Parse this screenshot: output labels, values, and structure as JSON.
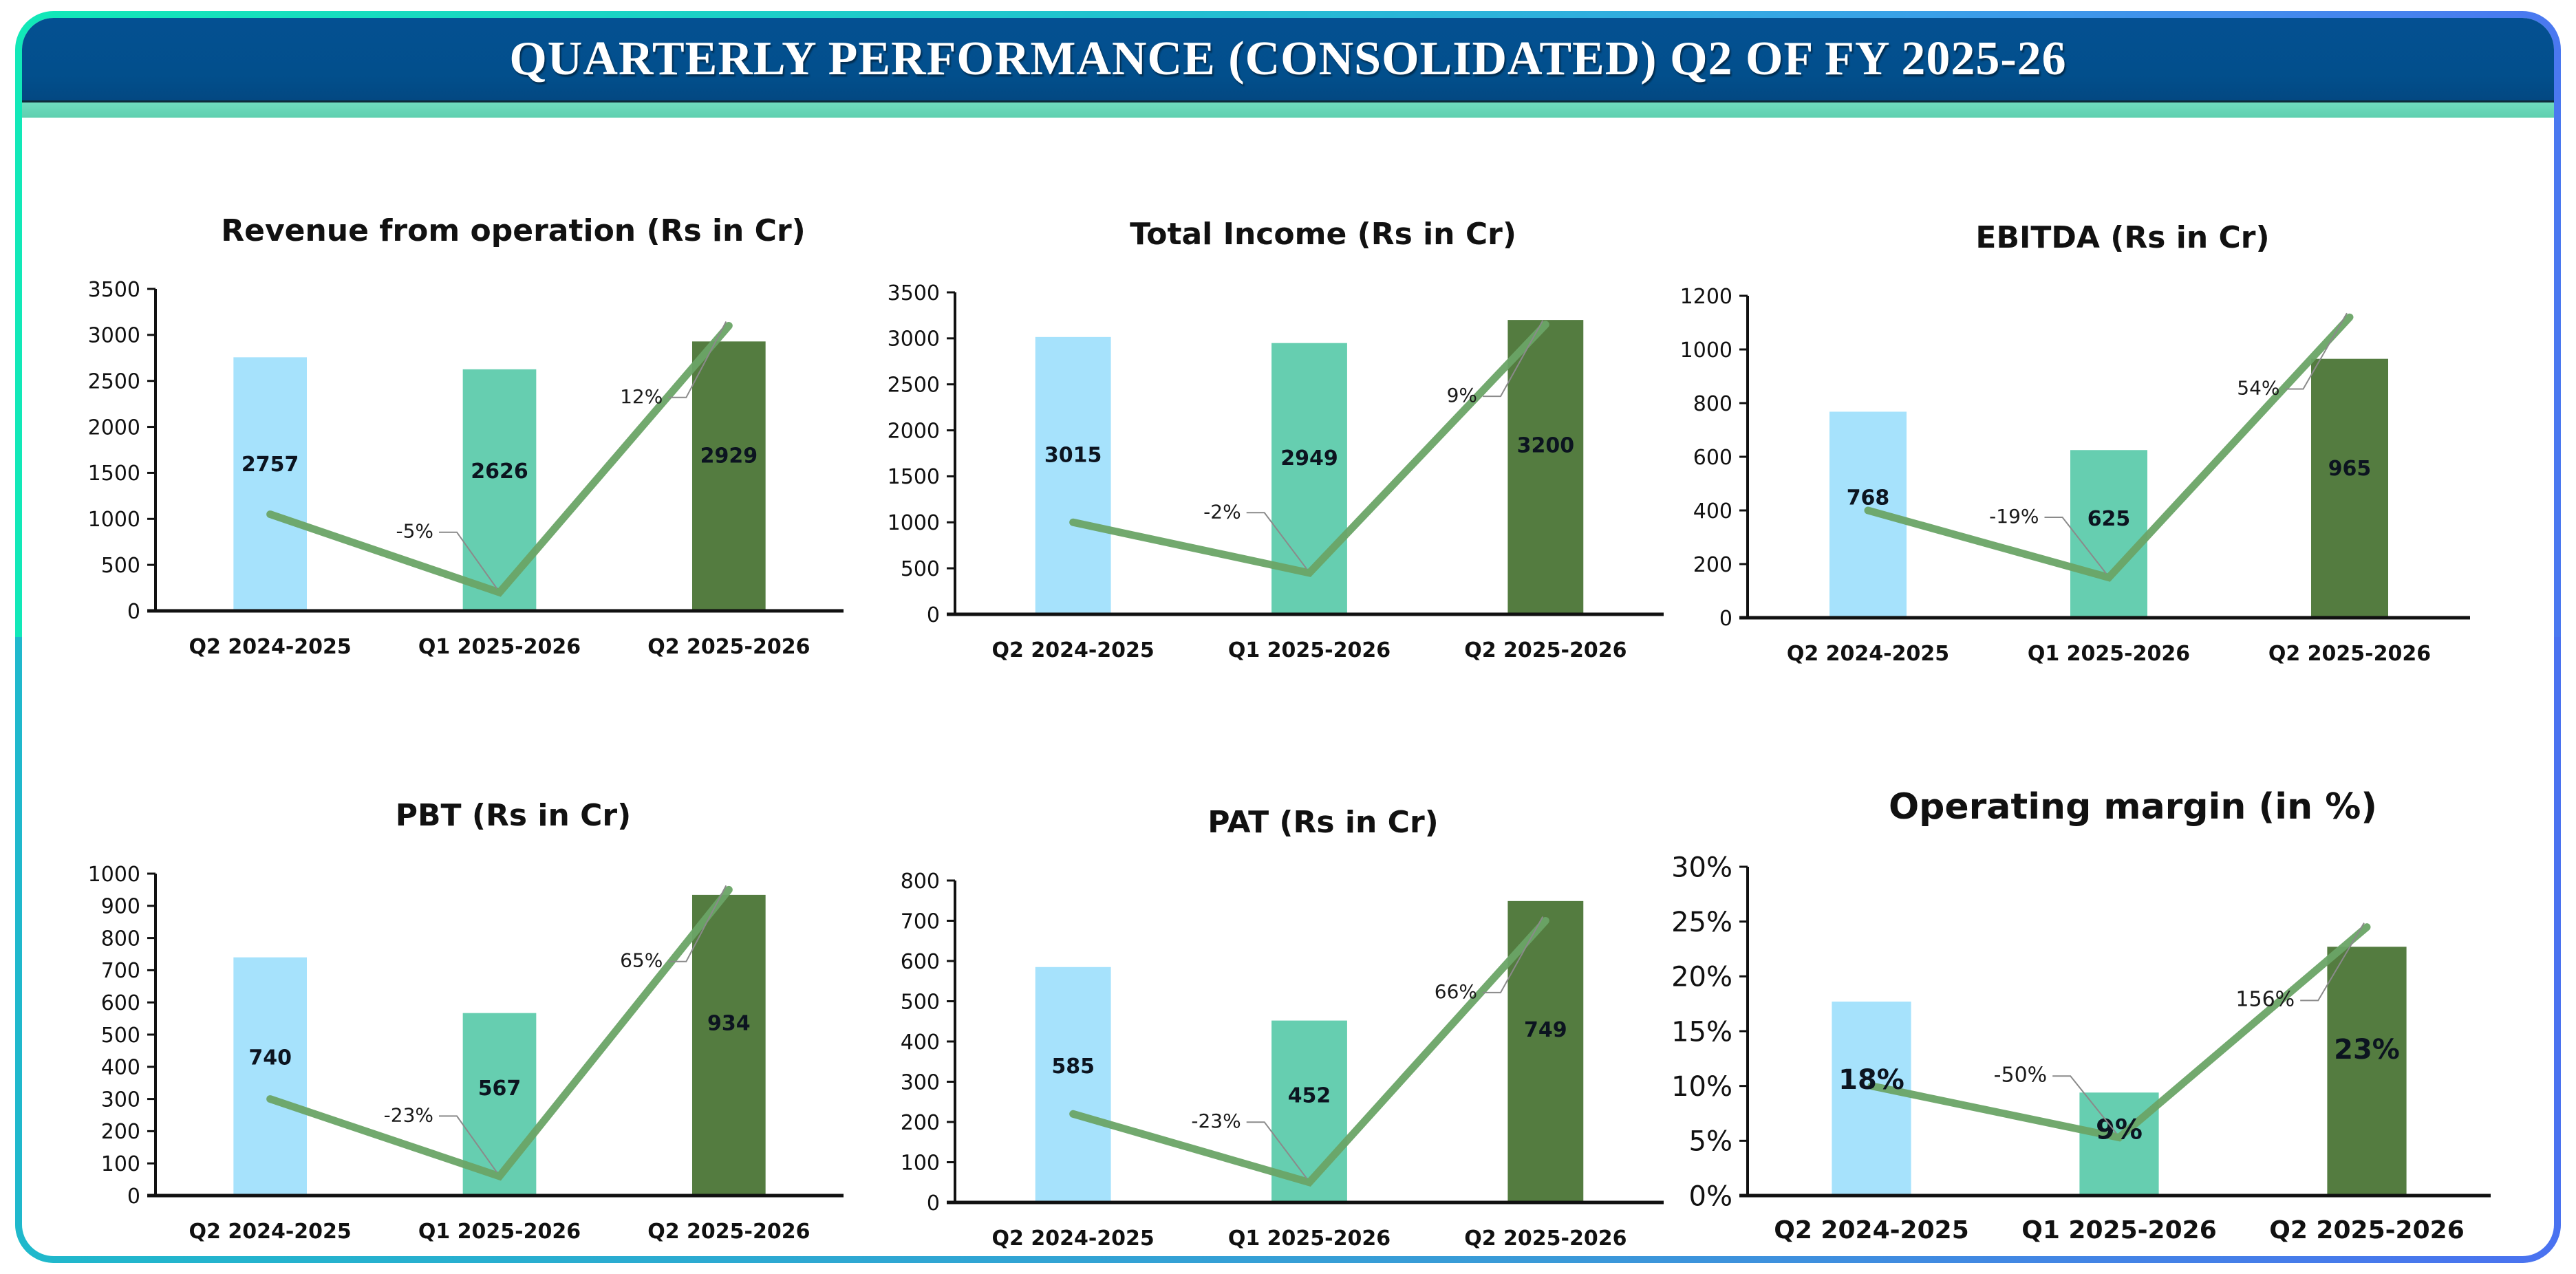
{
  "header": {
    "title": "QUARTERLY PERFORMANCE (CONSOLIDATED) Q2 OF FY 2025-26"
  },
  "colors": {
    "header_bg": "#024f8c",
    "header_band": "#66d4b4",
    "bar_q2_fy25": "#a6e2fc",
    "bar_q1_fy26": "#66ceb0",
    "bar_q2_fy26": "#547c40",
    "trend_line": "#6aa466",
    "leader_line": "#8a8a8a",
    "axis": "#111111"
  },
  "chart_data": [
    {
      "id": "revenue",
      "type": "bar",
      "title": "Revenue from operation (Rs in Cr)",
      "xlabel": "",
      "ylabel": "",
      "categories": [
        "Q2 2024-2025",
        "Q1 2025-2026",
        "Q2 2025-2026"
      ],
      "values": [
        2757,
        2626,
        2929
      ],
      "value_labels": [
        "2757",
        "2626",
        "2929"
      ],
      "ylim": [
        0,
        3500
      ],
      "yticks": [
        0,
        500,
        1000,
        1500,
        2000,
        2500,
        3000,
        3500
      ],
      "ytick_labels": [
        "0",
        "500",
        "1000",
        "1500",
        "2000",
        "2500",
        "3000",
        "3500"
      ],
      "grid": false,
      "trend_line": [
        1050,
        200,
        3100
      ],
      "growth_labels": [
        "-5%",
        "12%"
      ]
    },
    {
      "id": "total-income",
      "type": "bar",
      "title": "Total Income (Rs in Cr)",
      "xlabel": "",
      "ylabel": "",
      "categories": [
        "Q2 2024-2025",
        "Q1 2025-2026",
        "Q2 2025-2026"
      ],
      "values": [
        3015,
        2949,
        3200
      ],
      "value_labels": [
        "3015",
        "2949",
        "3200"
      ],
      "ylim": [
        0,
        3500
      ],
      "yticks": [
        0,
        500,
        1000,
        1500,
        2000,
        2500,
        3000,
        3500
      ],
      "ytick_labels": [
        "0",
        "500",
        "1000",
        "1500",
        "2000",
        "2500",
        "3000",
        "3500"
      ],
      "grid": false,
      "trend_line": [
        1000,
        450,
        3150
      ],
      "growth_labels": [
        "-2%",
        "9%"
      ]
    },
    {
      "id": "ebitda",
      "type": "bar",
      "title": "EBITDA (Rs in Cr)",
      "xlabel": "",
      "ylabel": "",
      "categories": [
        "Q2 2024-2025",
        "Q1 2025-2026",
        "Q2 2025-2026"
      ],
      "values": [
        768,
        625,
        965
      ],
      "value_labels": [
        "768",
        "625",
        "965"
      ],
      "ylim": [
        0,
        1200
      ],
      "yticks": [
        0,
        200,
        400,
        600,
        800,
        1000,
        1200
      ],
      "ytick_labels": [
        "0",
        "200",
        "400",
        "600",
        "800",
        "1000",
        "1200"
      ],
      "grid": false,
      "trend_line": [
        400,
        150,
        1120
      ],
      "growth_labels": [
        "-19%",
        "54%"
      ]
    },
    {
      "id": "pbt",
      "type": "bar",
      "title": "PBT (Rs in Cr)",
      "xlabel": "",
      "ylabel": "",
      "categories": [
        "Q2 2024-2025",
        "Q1 2025-2026",
        "Q2 2025-2026"
      ],
      "values": [
        740,
        567,
        934
      ],
      "value_labels": [
        "740",
        "567",
        "934"
      ],
      "ylim": [
        0,
        1000
      ],
      "yticks": [
        0,
        100,
        200,
        300,
        400,
        500,
        600,
        700,
        800,
        900,
        1000
      ],
      "ytick_labels": [
        "0",
        "100",
        "200",
        "300",
        "400",
        "500",
        "600",
        "700",
        "800",
        "900",
        "1000"
      ],
      "grid": false,
      "trend_line": [
        300,
        60,
        950
      ],
      "growth_labels": [
        "-23%",
        "65%"
      ]
    },
    {
      "id": "pat",
      "type": "bar",
      "title": "PAT (Rs in Cr)",
      "xlabel": "",
      "ylabel": "",
      "categories": [
        "Q2 2024-2025",
        "Q1 2025-2026",
        "Q2 2025-2026"
      ],
      "values": [
        585,
        452,
        749
      ],
      "value_labels": [
        "585",
        "452",
        "749"
      ],
      "ylim": [
        0,
        800
      ],
      "yticks": [
        0,
        100,
        200,
        300,
        400,
        500,
        600,
        700,
        800
      ],
      "ytick_labels": [
        "0",
        "100",
        "200",
        "300",
        "400",
        "500",
        "600",
        "700",
        "800"
      ],
      "grid": false,
      "trend_line": [
        220,
        50,
        700
      ],
      "growth_labels": [
        "-23%",
        "66%"
      ]
    },
    {
      "id": "operating-margin",
      "type": "bar",
      "title": "Operating margin (in %)",
      "xlabel": "",
      "ylabel": "",
      "categories": [
        "Q2 2024-2025",
        "Q1 2025-2026",
        "Q2 2025-2026"
      ],
      "values": [
        17.7,
        9.4,
        22.7
      ],
      "value_labels": [
        "18%",
        "9%",
        "23%"
      ],
      "ylim": [
        0,
        30
      ],
      "yticks": [
        0,
        5,
        10,
        15,
        20,
        25,
        30
      ],
      "ytick_labels": [
        "0%",
        "5%",
        "10%",
        "15%",
        "20%",
        "25%",
        "30%"
      ],
      "grid": false,
      "trend_line": [
        10,
        5.3,
        24.5
      ],
      "growth_labels": [
        "-50%",
        "156%"
      ]
    }
  ]
}
